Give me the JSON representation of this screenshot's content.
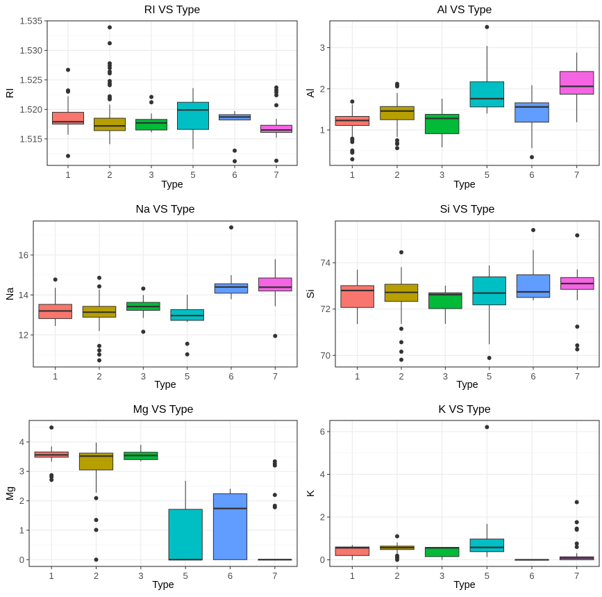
{
  "chart_data": [
    {
      "type": "box",
      "title": "RI VS Type",
      "xlabel": "Type",
      "ylabel": "RI",
      "categories": [
        "1",
        "2",
        "3",
        "5",
        "6",
        "7"
      ],
      "yticks": [
        1.515,
        1.52,
        1.525,
        1.53,
        1.535
      ],
      "ytick_labels": [
        "1.515",
        "1.520",
        "1.525",
        "1.530",
        "1.535"
      ],
      "ylim": [
        1.5105,
        1.535
      ],
      "grid": true,
      "boxes": [
        {
          "category": "1",
          "lower": 1.5157,
          "q1": 1.5175,
          "median": 1.5179,
          "q3": 1.5195,
          "upper": 1.5222,
          "outliers": [
            1.5267,
            1.5232,
            1.523,
            1.5121
          ]
        },
        {
          "category": "2",
          "lower": 1.5141,
          "q1": 1.5164,
          "median": 1.5172,
          "q3": 1.5185,
          "upper": 1.5208,
          "outliers": [
            1.5339,
            1.5312,
            1.5278,
            1.5274,
            1.527,
            1.5264,
            1.5261,
            1.5248,
            1.5244,
            1.5241,
            1.5222,
            1.5219,
            1.5217
          ]
        },
        {
          "category": "3",
          "lower": 1.5161,
          "q1": 1.5165,
          "median": 1.5177,
          "q3": 1.5183,
          "upper": 1.5193,
          "outliers": [
            1.5221,
            1.5212
          ]
        },
        {
          "category": "5",
          "lower": 1.5133,
          "q1": 1.5166,
          "median": 1.5199,
          "q3": 1.5212,
          "upper": 1.5236,
          "outliers": []
        },
        {
          "category": "6",
          "lower": 1.5182,
          "q1": 1.5182,
          "median": 1.5187,
          "q3": 1.5191,
          "upper": 1.5197,
          "outliers": [
            1.513,
            1.5112
          ]
        },
        {
          "category": "7",
          "lower": 1.5152,
          "q1": 1.5161,
          "median": 1.5165,
          "q3": 1.5173,
          "upper": 1.5184,
          "outliers": [
            1.5237,
            1.5233,
            1.5229,
            1.5224,
            1.5207,
            1.5113
          ]
        }
      ]
    },
    {
      "type": "box",
      "title": "Al VS Type",
      "xlabel": "Type",
      "ylabel": "Al",
      "categories": [
        "1",
        "2",
        "3",
        "5",
        "6",
        "7"
      ],
      "yticks": [
        1,
        2,
        3
      ],
      "ytick_labels": [
        "1",
        "2",
        "3"
      ],
      "ylim": [
        0.14,
        3.65
      ],
      "grid": true,
      "boxes": [
        {
          "category": "1",
          "lower": 0.84,
          "q1": 1.11,
          "median": 1.23,
          "q3": 1.33,
          "upper": 1.62,
          "outliers": [
            1.69,
            0.79,
            0.76,
            0.71,
            0.5,
            0.47,
            0.45,
            0.29
          ]
        },
        {
          "category": "2",
          "lower": 0.83,
          "q1": 1.25,
          "median": 1.46,
          "q3": 1.57,
          "upper": 1.9,
          "outliers": [
            2.12,
            2.09,
            2.06,
            0.75,
            0.68,
            0.66,
            0.56
          ]
        },
        {
          "category": "3",
          "lower": 0.58,
          "q1": 0.91,
          "median": 1.28,
          "q3": 1.38,
          "upper": 1.76,
          "outliers": []
        },
        {
          "category": "5",
          "lower": 1.4,
          "q1": 1.56,
          "median": 1.76,
          "q3": 2.17,
          "upper": 3.04,
          "outliers": [
            3.5
          ]
        },
        {
          "category": "6",
          "lower": 0.56,
          "q1": 1.19,
          "median": 1.56,
          "q3": 1.66,
          "upper": 2.09,
          "outliers": [
            0.34
          ]
        },
        {
          "category": "7",
          "lower": 1.19,
          "q1": 1.87,
          "median": 2.06,
          "q3": 2.42,
          "upper": 2.88,
          "outliers": []
        }
      ]
    },
    {
      "type": "box",
      "title": "Na VS Type",
      "xlabel": "Type",
      "ylabel": "Na",
      "categories": [
        "1",
        "2",
        "3",
        "5",
        "6",
        "7"
      ],
      "yticks": [
        12,
        14,
        16
      ],
      "ytick_labels": [
        "12",
        "14",
        "16"
      ],
      "ylim": [
        10.4,
        17.7
      ],
      "grid": true,
      "boxes": [
        {
          "category": "1",
          "lower": 12.45,
          "q1": 12.82,
          "median": 13.2,
          "q3": 13.53,
          "upper": 14.36,
          "outliers": [
            14.77
          ]
        },
        {
          "category": "2",
          "lower": 12.2,
          "q1": 12.89,
          "median": 13.14,
          "q3": 13.43,
          "upper": 14.27,
          "outliers": [
            14.86,
            14.43,
            11.45,
            11.23,
            11.02,
            10.73
          ]
        },
        {
          "category": "3",
          "lower": 12.85,
          "q1": 13.23,
          "median": 13.42,
          "q3": 13.63,
          "upper": 14.0,
          "outliers": [
            14.32,
            12.16
          ]
        },
        {
          "category": "5",
          "lower": 12.65,
          "q1": 12.73,
          "median": 12.97,
          "q3": 13.27,
          "upper": 14.01,
          "outliers": [
            11.56,
            11.03
          ]
        },
        {
          "category": "6",
          "lower": 13.79,
          "q1": 14.09,
          "median": 14.4,
          "q3": 14.56,
          "upper": 14.99,
          "outliers": [
            17.38
          ]
        },
        {
          "category": "7",
          "lower": 13.44,
          "q1": 14.2,
          "median": 14.39,
          "q3": 14.85,
          "upper": 15.79,
          "outliers": [
            11.95
          ]
        }
      ]
    },
    {
      "type": "box",
      "title": "Si VS Type",
      "xlabel": "Type",
      "ylabel": "Si",
      "categories": [
        "1",
        "2",
        "3",
        "5",
        "6",
        "7"
      ],
      "yticks": [
        70,
        72,
        74
      ],
      "ytick_labels": [
        "70",
        "72",
        "74"
      ],
      "ylim": [
        69.5,
        75.8
      ],
      "grid": true,
      "boxes": [
        {
          "category": "1",
          "lower": 71.35,
          "q1": 72.07,
          "median": 72.8,
          "q3": 73.01,
          "upper": 73.7,
          "outliers": []
        },
        {
          "category": "2",
          "lower": 71.36,
          "q1": 72.33,
          "median": 72.72,
          "q3": 73.07,
          "upper": 73.81,
          "outliers": [
            74.45,
            71.15,
            70.57,
            70.16,
            69.81
          ]
        },
        {
          "category": "3",
          "lower": 71.36,
          "q1": 72.02,
          "median": 72.62,
          "q3": 72.7,
          "upper": 73.01,
          "outliers": []
        },
        {
          "category": "5",
          "lower": 70.48,
          "q1": 72.18,
          "median": 72.69,
          "q3": 73.39,
          "upper": 73.88,
          "outliers": [
            69.89
          ]
        },
        {
          "category": "6",
          "lower": 72.37,
          "q1": 72.5,
          "median": 72.74,
          "q3": 73.48,
          "upper": 74.55,
          "outliers": [
            75.41
          ]
        },
        {
          "category": "7",
          "lower": 72.38,
          "q1": 72.85,
          "median": 73.1,
          "q3": 73.36,
          "upper": 73.71,
          "outliers": [
            75.18,
            71.24,
            70.43,
            70.26
          ]
        }
      ]
    },
    {
      "type": "box",
      "title": "Mg VS Type",
      "xlabel": "Type",
      "ylabel": "Mg",
      "categories": [
        "1",
        "2",
        "3",
        "5",
        "6",
        "7"
      ],
      "yticks": [
        0,
        1,
        2,
        3,
        4
      ],
      "ytick_labels": [
        "0",
        "1",
        "2",
        "3",
        "4"
      ],
      "ylim": [
        -0.23,
        4.73
      ],
      "grid": true,
      "boxes": [
        {
          "category": "1",
          "lower": 3.33,
          "q1": 3.48,
          "median": 3.56,
          "q3": 3.66,
          "upper": 3.85,
          "outliers": [
            4.49,
            2.87,
            2.81,
            2.71
          ]
        },
        {
          "category": "2",
          "lower": 2.28,
          "q1": 3.05,
          "median": 3.52,
          "q3": 3.62,
          "upper": 3.98,
          "outliers": [
            2.09,
            1.35,
            1.01,
            0.0
          ]
        },
        {
          "category": "3",
          "lower": 3.34,
          "q1": 3.4,
          "median": 3.54,
          "q3": 3.65,
          "upper": 3.9,
          "outliers": []
        },
        {
          "category": "5",
          "lower": 0.0,
          "q1": 0.0,
          "median": 0.0,
          "q3": 1.71,
          "upper": 2.68,
          "outliers": []
        },
        {
          "category": "6",
          "lower": 0.0,
          "q1": 0.0,
          "median": 1.74,
          "q3": 2.24,
          "upper": 2.41,
          "outliers": []
        },
        {
          "category": "7",
          "lower": 0.0,
          "q1": 0.0,
          "median": 0.0,
          "q3": 0.0,
          "upper": 0.0,
          "outliers": [
            3.34,
            3.26,
            3.2,
            2.2,
            1.83,
            1.78
          ]
        }
      ]
    },
    {
      "type": "box",
      "title": "K VS Type",
      "xlabel": "Type",
      "ylabel": "K",
      "categories": [
        "1",
        "2",
        "3",
        "5",
        "6",
        "7"
      ],
      "yticks": [
        0,
        2,
        4,
        6
      ],
      "ytick_labels": [
        "0",
        "2",
        "4",
        "6"
      ],
      "ylim": [
        -0.31,
        6.52
      ],
      "grid": true,
      "boxes": [
        {
          "category": "1",
          "lower": 0.0,
          "q1": 0.2,
          "median": 0.56,
          "q3": 0.6,
          "upper": 0.69,
          "outliers": []
        },
        {
          "category": "2",
          "lower": 0.27,
          "q1": 0.48,
          "median": 0.57,
          "q3": 0.64,
          "upper": 0.81,
          "outliers": [
            1.1,
            0.19,
            0.13,
            0.08,
            0.0
          ]
        },
        {
          "category": "3",
          "lower": 0.0,
          "q1": 0.15,
          "median": 0.56,
          "q3": 0.58,
          "upper": 0.58,
          "outliers": []
        },
        {
          "category": "5",
          "lower": 0.13,
          "q1": 0.38,
          "median": 0.58,
          "q3": 0.97,
          "upper": 1.68,
          "outliers": [
            6.21
          ]
        },
        {
          "category": "6",
          "lower": 0.0,
          "q1": 0.0,
          "median": 0.0,
          "q3": 0.0,
          "upper": 0.0,
          "outliers": []
        },
        {
          "category": "7",
          "lower": 0.0,
          "q1": 0.0,
          "median": 0.08,
          "q3": 0.14,
          "upper": 0.31,
          "outliers": [
            2.7,
            1.76,
            1.46,
            1.41,
            0.76,
            0.6
          ]
        }
      ]
    }
  ],
  "palette": {
    "1": "#F8766D",
    "2": "#B79F00",
    "3": "#00BA38",
    "5": "#00BFC4",
    "6": "#619CFF",
    "7": "#F564E3"
  },
  "colors": {
    "outline": "#333333",
    "grid_major": "#EBEBEB",
    "tick_text": "#4D4D4D"
  }
}
